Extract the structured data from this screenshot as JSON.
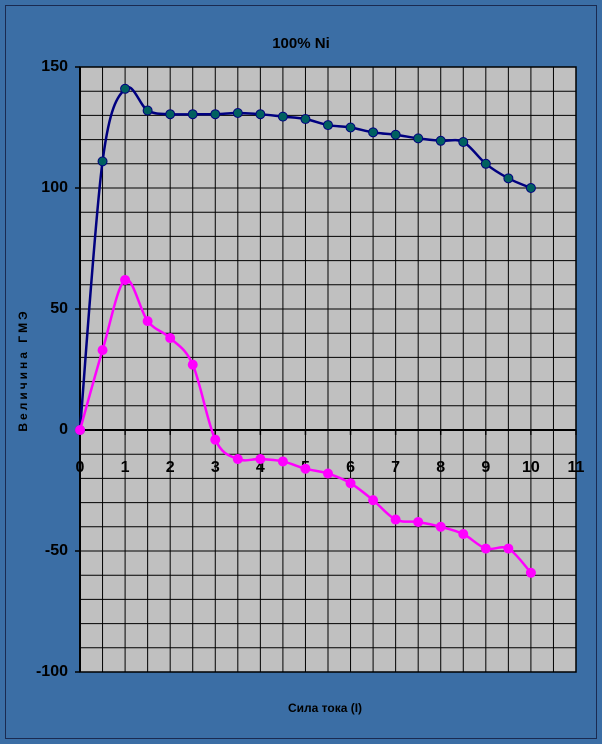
{
  "chart_data": {
    "type": "line",
    "title": "100% Ni",
    "x_label": "Сила тока (I)",
    "y_label": "Величина ГМЭ",
    "x": [
      0,
      0.5,
      1,
      1.5,
      2,
      2.5,
      3,
      3.5,
      4,
      4.5,
      5,
      5.5,
      6,
      6.5,
      7,
      7.5,
      8,
      8.5,
      9,
      9.5,
      10
    ],
    "series": [
      {
        "color": "#000080",
        "marker_color": "#006060",
        "values": [
          0,
          111,
          141,
          132,
          130.5,
          130.5,
          130.5,
          131,
          130.5,
          129.5,
          128.5,
          126,
          125,
          123,
          122,
          120.5,
          119.5,
          119,
          110,
          104,
          100
        ]
      },
      {
        "color": "#ff00ff",
        "marker_color": "#ff00ff",
        "values": [
          0,
          33,
          62,
          45,
          38,
          27,
          -4,
          -12,
          -12,
          -13,
          -16,
          -18,
          -22,
          -29,
          -37,
          -38,
          -40,
          -43,
          -49,
          -49,
          -59
        ]
      }
    ],
    "xlim": [
      0,
      11
    ],
    "xticks": [
      0,
      1,
      2,
      3,
      4,
      5,
      6,
      7,
      8,
      9,
      10,
      11
    ],
    "ylim": [
      -100,
      150
    ],
    "yticks": [
      -100,
      -50,
      0,
      50,
      100,
      150
    ],
    "xgrid": [
      0,
      0.5,
      1,
      1.5,
      2,
      2.5,
      3,
      3.5,
      4,
      4.5,
      5,
      5.5,
      6,
      6.5,
      7,
      7.5,
      8,
      8.5,
      9,
      9.5,
      10,
      10.5,
      11
    ],
    "ygrid": [
      -100,
      -90,
      -80,
      -70,
      -60,
      -50,
      -40,
      -30,
      -20,
      -10,
      0,
      10,
      20,
      30,
      40,
      50,
      60,
      70,
      80,
      90,
      100,
      110,
      120,
      130,
      140,
      150
    ],
    "grid": true
  }
}
